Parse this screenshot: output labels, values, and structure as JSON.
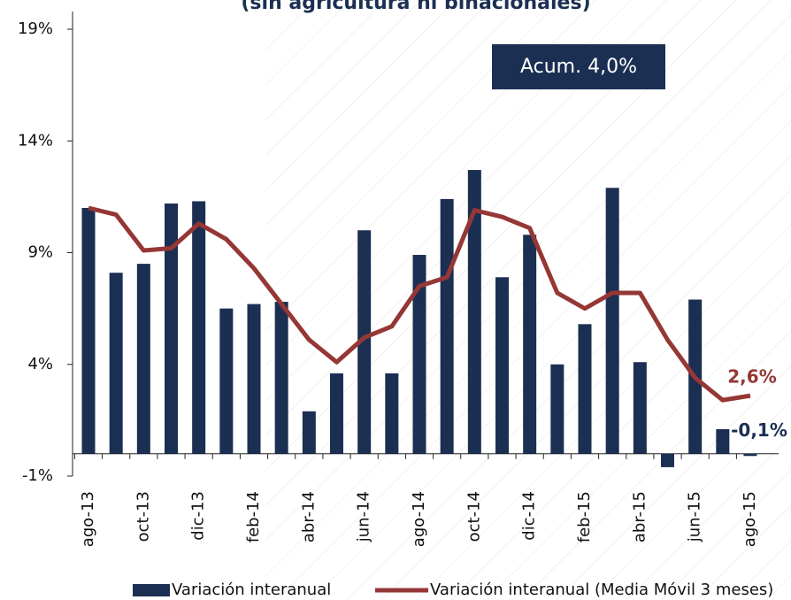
{
  "chart_data": {
    "type": "bar_line",
    "title": "(sin agricultura ni binacionales)",
    "annotation": "Acum. 4,0%",
    "categories": [
      "ago-13",
      null,
      "oct-13",
      null,
      "dic-13",
      null,
      "feb-14",
      null,
      "abr-14",
      null,
      "jun-14",
      null,
      "ago-14",
      null,
      "oct-14",
      null,
      "dic-14",
      null,
      "feb-15",
      null,
      "abr-15",
      null,
      "jun-15",
      null,
      "ago-15"
    ],
    "series": [
      {
        "name": "Variación interanual",
        "color": "#1b2f52",
        "kind": "bar",
        "values": [
          11.0,
          8.1,
          8.5,
          11.2,
          11.3,
          6.5,
          6.7,
          6.8,
          1.9,
          3.6,
          10.0,
          3.6,
          8.9,
          11.4,
          12.7,
          7.9,
          9.8,
          4.0,
          5.8,
          11.9,
          4.1,
          -0.6,
          6.9,
          1.1,
          -0.1
        ],
        "value_labels": [
          null,
          null,
          null,
          null,
          null,
          null,
          null,
          null,
          null,
          null,
          null,
          null,
          null,
          null,
          null,
          null,
          null,
          null,
          null,
          null,
          null,
          null,
          null,
          null,
          "-0,1%"
        ]
      },
      {
        "name": "Variación interanual (Media Móvil 3 meses)",
        "color": "#953735",
        "kind": "line",
        "values": [
          11.0,
          10.7,
          9.1,
          9.2,
          10.3,
          9.6,
          8.3,
          6.7,
          5.1,
          4.1,
          5.2,
          5.7,
          7.5,
          7.9,
          10.9,
          10.6,
          10.1,
          7.2,
          6.5,
          7.2,
          7.2,
          5.1,
          3.4,
          2.4,
          2.6
        ],
        "value_labels": [
          null,
          null,
          null,
          null,
          null,
          null,
          null,
          null,
          null,
          null,
          null,
          null,
          null,
          null,
          null,
          null,
          null,
          null,
          null,
          null,
          null,
          null,
          null,
          null,
          "2,6%"
        ]
      }
    ],
    "ylim": [
      -1,
      19
    ],
    "yticks": [
      {
        "value": -1,
        "label": "-1%"
      },
      {
        "value": 4,
        "label": "4%"
      },
      {
        "value": 9,
        "label": "9%"
      },
      {
        "value": 14,
        "label": "14%"
      },
      {
        "value": 19,
        "label": "19%"
      }
    ]
  }
}
